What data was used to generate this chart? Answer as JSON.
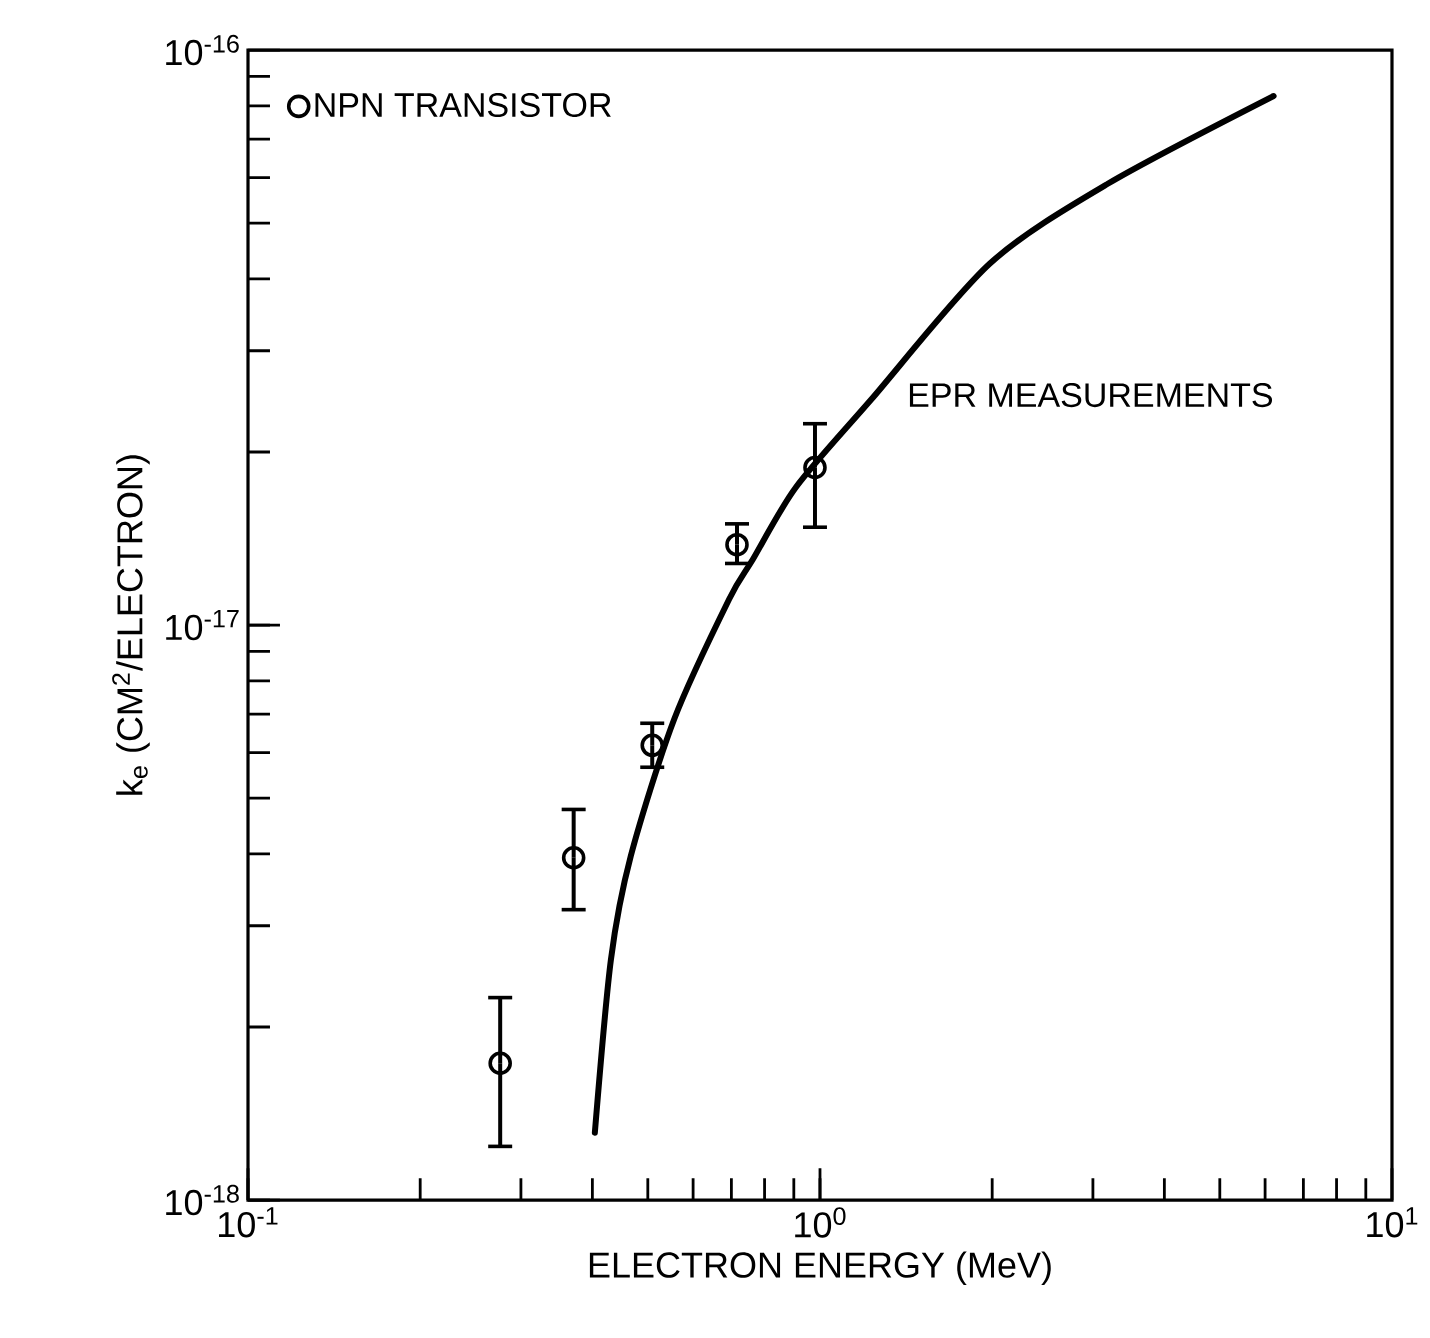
{
  "chart_data": {
    "type": "scatter",
    "xlabel": "ELECTRON ENERGY (MeV)",
    "ylabel": "k$_{e}$ (CM$^{2}$/ELECTRON)",
    "log": "xy",
    "xlim": [
      0.1,
      10
    ],
    "ylim": [
      1e-18,
      1e-16
    ],
    "xticks": [
      {
        "value": 0.1,
        "label": "10$^{-1}$"
      },
      {
        "value": 1,
        "label": "10$^{0}$"
      },
      {
        "value": 10,
        "label": "10$^{1}$"
      }
    ],
    "yticks": [
      {
        "value": 1e-18,
        "label": "10$^{-18}$"
      },
      {
        "value": 1e-17,
        "label": "10$^{-17}$"
      },
      {
        "value": 1e-16,
        "label": "10$^{-16}$"
      }
    ],
    "legend": "top left",
    "grid": false,
    "series": [
      {
        "name": "NPN TRANSISTOR",
        "marker": "circle",
        "color": "#000000",
        "x": [
          0.276,
          0.371,
          0.509,
          0.716,
          0.98
        ],
        "values": [
          1.73e-18,
          3.94e-18,
          6.18e-18,
          1.38e-17,
          1.88e-17
        ],
        "errors": [
          [
            1.24e-18,
            2.25e-18
          ],
          [
            3.2e-18,
            4.78e-18
          ],
          [
            5.66e-18,
            6.75e-18
          ],
          [
            1.28e-17,
            1.5e-17
          ],
          [
            1.48e-17,
            2.24e-17
          ]
        ]
      },
      {
        "type": "line",
        "marker": "none",
        "line_style": "solid",
        "color": "#000000",
        "x": [
          0.404,
          0.431,
          0.467,
          0.556,
          0.694,
          0.763,
          0.909,
          1.23,
          1.98,
          3.18,
          6.21
        ],
        "values": [
          1.31e-18,
          2.62e-18,
          3.97e-18,
          6.86e-18,
          1.11e-17,
          1.3e-17,
          1.74e-17,
          2.47e-17,
          4.25e-17,
          5.85e-17,
          8.32e-17
        ]
      }
    ],
    "annotations": [
      "EPR MEASUREMENTS"
    ]
  }
}
